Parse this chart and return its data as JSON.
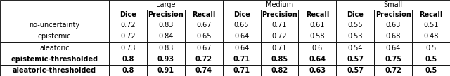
{
  "col_groups": [
    "Large",
    "Medium",
    "Small"
  ],
  "col_subheaders": [
    "Dice",
    "Precision",
    "Recall"
  ],
  "row_labels": [
    "no-uncertainty",
    "epistemic",
    "aleatoric",
    "epistemic-thresholded",
    "aleatoric-thresholded"
  ],
  "data": [
    [
      [
        0.72,
        0.83,
        0.67
      ],
      [
        0.65,
        0.71,
        0.61
      ],
      [
        0.55,
        0.63,
        0.51
      ]
    ],
    [
      [
        0.72,
        0.84,
        0.65
      ],
      [
        0.64,
        0.72,
        0.58
      ],
      [
        0.53,
        0.68,
        0.48
      ]
    ],
    [
      [
        0.73,
        0.83,
        0.67
      ],
      [
        0.64,
        0.71,
        0.6
      ],
      [
        0.54,
        0.64,
        0.5
      ]
    ],
    [
      [
        0.8,
        0.93,
        0.72
      ],
      [
        0.71,
        0.85,
        0.64
      ],
      [
        0.57,
        0.75,
        0.5
      ]
    ],
    [
      [
        0.8,
        0.91,
        0.74
      ],
      [
        0.71,
        0.82,
        0.63
      ],
      [
        0.57,
        0.72,
        0.5
      ]
    ]
  ],
  "bold_rows": [
    3,
    4
  ],
  "background_color": "#ffffff",
  "line_color": "#000000",
  "font_size": 7.0
}
